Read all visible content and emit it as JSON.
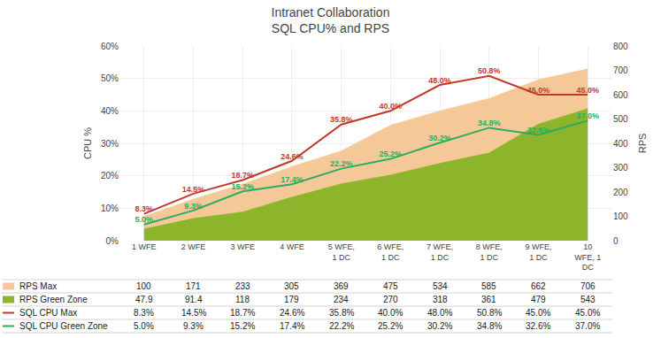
{
  "chart_data": {
    "type": "line",
    "title": "Intranet Collaboration\nSQL CPU% and RPS",
    "categories": [
      "1 WFE",
      "2 WFE",
      "3 WFE",
      "4 WFE",
      "5 WFE,\n1 DC",
      "6 WFE,\n1 DC",
      "7 WFE,\n1 DC",
      "8 WFE,\n1 DC",
      "9 WFE,\n1 DC",
      "10\nWFE, 1\nDC"
    ],
    "series": [
      {
        "name": "RPS Max",
        "type": "area",
        "axis": "y2",
        "color": "#F5C897",
        "values": [
          100,
          171,
          233,
          305,
          369,
          475,
          534,
          585,
          662,
          706
        ]
      },
      {
        "name": "RPS Green Zone",
        "type": "area",
        "axis": "y2",
        "color": "#8DB52B",
        "values": [
          47.9,
          91.4,
          118,
          179,
          234,
          270,
          318,
          361,
          479,
          543
        ]
      },
      {
        "name": "SQL CPU Max",
        "type": "line",
        "color": "#C0392B",
        "data_labels": true,
        "values": [
          8.3,
          14.5,
          18.7,
          24.6,
          35.8,
          40.0,
          48.0,
          50.8,
          45.0,
          45.0
        ],
        "value_labels": [
          "8.3%",
          "14.5%",
          "18.7%",
          "24.6%",
          "35.8%",
          "40.0%",
          "48.0%",
          "50.8%",
          "45.0%",
          "45.0%"
        ]
      },
      {
        "name": "SQL CPU Green Zone",
        "type": "line",
        "color": "#27AE60",
        "data_labels": true,
        "values": [
          5.0,
          9.3,
          15.2,
          17.4,
          22.2,
          25.2,
          30.2,
          34.8,
          32.6,
          37.0
        ],
        "value_labels": [
          "5.0%",
          "9.3%",
          "15.2%",
          "17.4%",
          "22.2%",
          "25.2%",
          "30.2%",
          "34.8%",
          "32.6%",
          "37.0%"
        ]
      }
    ],
    "ylabel": "CPU %",
    "ylim": [
      0,
      60
    ],
    "yticks": [
      {
        "value": 0,
        "label": "0%"
      },
      {
        "value": 10,
        "label": "10%"
      },
      {
        "value": 20,
        "label": "20%"
      },
      {
        "value": 30,
        "label": "30%"
      },
      {
        "value": 40,
        "label": "40%"
      },
      {
        "value": 50,
        "label": "50%"
      },
      {
        "value": 60,
        "label": "60%"
      }
    ],
    "y2label": "RPS",
    "y2lim": [
      0,
      800
    ],
    "y2ticks": [
      0,
      100,
      200,
      300,
      400,
      500,
      600,
      700,
      800
    ],
    "grid": true
  }
}
